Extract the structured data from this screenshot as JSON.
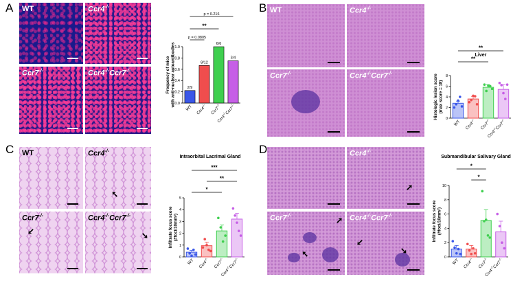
{
  "panels": {
    "A": {
      "letter": "A",
      "images": [
        {
          "label": "WT",
          "sup": ""
        },
        {
          "label": "Ccr4",
          "sup": "-/-"
        },
        {
          "label": "Ccr7",
          "sup": "-/-"
        },
        {
          "label": "Ccr4",
          "sup": "-/-",
          "label2": "Ccr7",
          "sup2": "-/-"
        }
      ]
    },
    "B": {
      "letter": "B",
      "images": [
        {
          "label": "WT",
          "sup": ""
        },
        {
          "label": "Ccr4",
          "sup": "-/-"
        },
        {
          "label": "Ccr7",
          "sup": "-/-"
        },
        {
          "label": "Ccr4",
          "sup": "-/-",
          "label2": "Ccr7",
          "sup2": "-/-"
        }
      ]
    },
    "C": {
      "letter": "C",
      "images": [
        {
          "label": "WT",
          "sup": ""
        },
        {
          "label": "Ccr4",
          "sup": "-/-"
        },
        {
          "label": "Ccr7",
          "sup": "-/-"
        },
        {
          "label": "Ccr4",
          "sup": "-/-",
          "label2": "Ccr7",
          "sup2": "-/-"
        }
      ]
    },
    "D": {
      "letter": "D",
      "images": [
        {
          "label": "",
          "sup": ""
        },
        {
          "label": "Ccr4",
          "sup": "-/-"
        },
        {
          "label": "Ccr7",
          "sup": "-/-"
        },
        {
          "label": "Ccr4",
          "sup": "-/-",
          "label2": "Ccr7",
          "sup2": "-/-"
        }
      ]
    }
  },
  "arrow_glyph": "➘",
  "colors": {
    "wt": "#3a57e8",
    "ccr4": "#f04d4d",
    "ccr7": "#3fcf4f",
    "dko": "#c65fe6"
  },
  "chart_data": [
    {
      "panel": "A",
      "type": "bar",
      "title": "",
      "ylabel": "Frequency of mice with anti-nuclear autoantibodies",
      "ylabel_lines": [
        "Frequency of mice",
        "with anti-nuclear autoantibodies"
      ],
      "categories": [
        "WT",
        "Ccr4-/-",
        "Ccr7-/-",
        "Ccr4-/-Ccr7-/-"
      ],
      "category_parts": [
        [
          "WT",
          ""
        ],
        [
          "Ccr4",
          "-/-"
        ],
        [
          "Ccr7",
          "-/-"
        ],
        [
          "Ccr4",
          "-/-",
          "Ccr7",
          "-/-"
        ]
      ],
      "values": [
        0.222,
        0.667,
        1.0,
        0.75
      ],
      "bar_labels": [
        "2/9",
        "8/12",
        "6/6",
        "3/4"
      ],
      "ylim": [
        0,
        1.0
      ],
      "yticks": [
        0.0,
        0.2,
        0.4,
        0.6,
        0.8,
        1.0
      ],
      "ytick_labels": [
        "0.0",
        "0.2",
        "0.4",
        "0.6",
        "0.8",
        "1.0"
      ],
      "comparisons": [
        {
          "from": 0,
          "to": 3,
          "label": "p = 0.216",
          "bold": false
        },
        {
          "from": 0,
          "to": 2,
          "label": "**",
          "bold": true
        },
        {
          "from": 0,
          "to": 1,
          "label": "p = 0.0805",
          "bold": false
        }
      ]
    },
    {
      "panel": "B",
      "type": "bar",
      "title": "Liver",
      "ylabel_lines": [
        "Histologic lesion score",
        "(max score = 18)"
      ],
      "categories": [
        "WT",
        "Ccr4-/-",
        "Ccr7-/-",
        "Ccr4-/-Ccr7-/-"
      ],
      "category_parts": [
        [
          "WT",
          ""
        ],
        [
          "Ccr4",
          "-/-"
        ],
        [
          "Ccr7",
          "-/-"
        ],
        [
          "Ccr4",
          "-/-",
          "Ccr7",
          "-/-"
        ]
      ],
      "values": [
        2.8,
        3.6,
        5.8,
        5.4
      ],
      "errors": [
        0.4,
        0.5,
        0.5,
        0.9
      ],
      "points": [
        [
          2,
          2.6,
          3.3,
          4.0,
          2.2
        ],
        [
          3.0,
          3.4,
          4.2,
          4.1,
          2.6
        ],
        [
          6.3,
          5.1,
          6.1,
          6.0,
          5.5
        ],
        [
          6.6,
          6.2,
          4.7,
          3.6,
          6.3
        ]
      ],
      "ylim": [
        0,
        8
      ],
      "yticks": [
        0,
        2,
        4,
        6,
        8
      ],
      "ytick_labels": [
        "0",
        "2",
        "4",
        "6",
        "8"
      ],
      "comparisons": [
        {
          "from": 0,
          "to": 3,
          "label": "**",
          "bold": true
        },
        {
          "from": 0,
          "to": 2,
          "label": "**",
          "bold": true
        }
      ]
    },
    {
      "panel": "C",
      "type": "bar",
      "title": "Intraorbital Lacrimal Gland",
      "ylabel_lines": [
        "Infiltrate focus score",
        "(#foci/10mm²)"
      ],
      "categories": [
        "WT",
        "Ccr4-/-",
        "Ccr7-/-",
        "Ccr4-/-Ccr7-/-"
      ],
      "category_parts": [
        [
          "WT",
          ""
        ],
        [
          "Ccr4",
          "-/-"
        ],
        [
          "Ccr7",
          "-/-"
        ],
        [
          "Ccr4",
          "-/-",
          "Ccr7",
          "-/-"
        ]
      ],
      "values": [
        0.4,
        0.95,
        2.2,
        3.2
      ],
      "errors": [
        0.15,
        0.3,
        0.5,
        0.5
      ],
      "points": [
        [
          0.7,
          0.3,
          0.1,
          0.6,
          0.2
        ],
        [
          0.8,
          1.5,
          1.0,
          0.6,
          0.5
        ],
        [
          3.3,
          2.5,
          1.3,
          1.8
        ],
        [
          4.1,
          3.5,
          2.9,
          2.2,
          1.8
        ]
      ],
      "ylim": [
        0,
        5
      ],
      "yticks": [
        0,
        1,
        2,
        3,
        4,
        5
      ],
      "ytick_labels": [
        "0",
        "1",
        "2",
        "3",
        "4",
        "5"
      ],
      "comparisons": [
        {
          "from": 0,
          "to": 3,
          "label": "***",
          "bold": true
        },
        {
          "from": 1,
          "to": 3,
          "label": "**",
          "bold": true
        },
        {
          "from": 0,
          "to": 2,
          "label": "*",
          "bold": true
        }
      ]
    },
    {
      "panel": "D",
      "type": "bar",
      "title": "Submandibular Salivary Gland",
      "ylabel_lines": [
        "Infiltrate focus score",
        "(#foci/10mm²)"
      ],
      "categories": [
        "WT",
        "Ccr4-/-",
        "Ccr7-/-",
        "Ccr4-/-Ccr7-/-"
      ],
      "category_parts": [
        [
          "WT",
          ""
        ],
        [
          "Ccr4",
          "-/-"
        ],
        [
          "Ccr7",
          "-/-"
        ],
        [
          "Ccr4",
          "-/-",
          "Ccr7",
          "-/-"
        ]
      ],
      "values": [
        1.1,
        1.1,
        5.1,
        3.5
      ],
      "errors": [
        0.5,
        0.5,
        1.5,
        1.5
      ],
      "points": [
        [
          2.2,
          1.3,
          0.5,
          1.1,
          0.4
        ],
        [
          1.8,
          0.9,
          0.4,
          1.2,
          0.5
        ],
        [
          9.2,
          5.0,
          5.2,
          3.0,
          2.7
        ],
        [
          6.0,
          4.3,
          2.0,
          1.2
        ]
      ],
      "ylim": [
        0,
        10
      ],
      "yticks": [
        0,
        2,
        4,
        6,
        8,
        10
      ],
      "ytick_labels": [
        "0",
        "2",
        "4",
        "6",
        "8",
        "10"
      ],
      "comparisons": [
        {
          "from": 0,
          "to": 2,
          "label": "*",
          "bold": true
        },
        {
          "from": 1,
          "to": 2,
          "label": "*",
          "bold": true
        }
      ]
    }
  ]
}
